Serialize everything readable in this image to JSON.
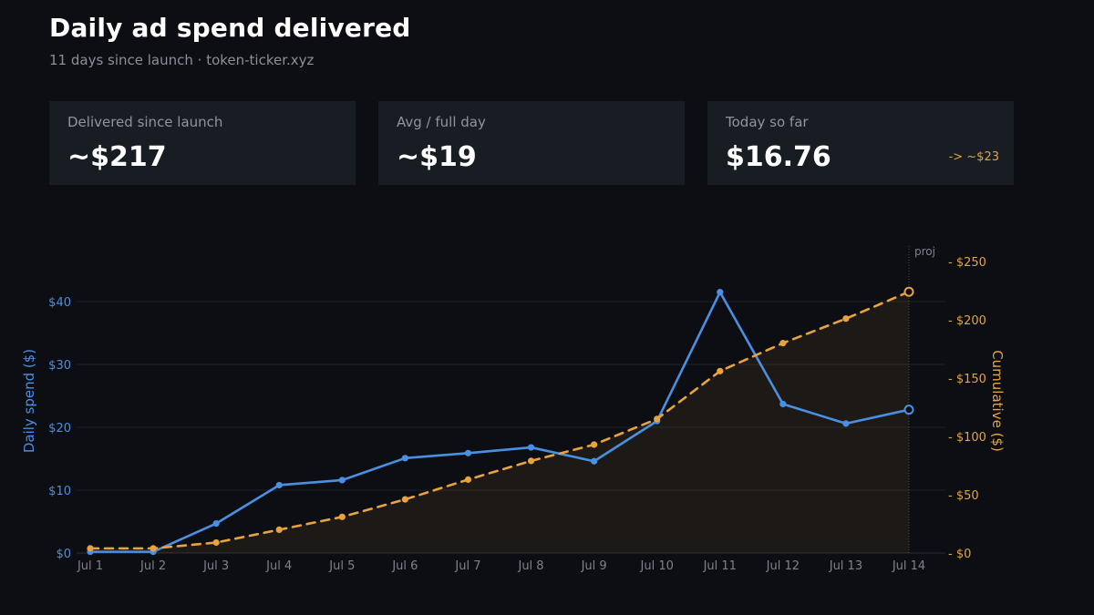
{
  "header": {
    "title": "Daily ad spend delivered",
    "subtitle": "11 days since launch · token-ticker.xyz"
  },
  "cards": [
    {
      "label": "Delivered since launch",
      "value": "~$217"
    },
    {
      "label": "Avg / full day",
      "value": "~$19"
    },
    {
      "label": "Today so far",
      "value": "$16.76",
      "note": "-> ~$23"
    }
  ],
  "colors": {
    "daily": "#4a90e2",
    "cumulative": "#e8a33d",
    "background": "#0c0e13",
    "card": "#181c23"
  },
  "chart_data": {
    "type": "line",
    "categories": [
      "Jul 1",
      "Jul 2",
      "Jul 3",
      "Jul 4",
      "Jul 5",
      "Jul 6",
      "Jul 7",
      "Jul 8",
      "Jul 9",
      "Jul 10",
      "Jul 11",
      "Jul 12",
      "Jul 13",
      "Jul 14"
    ],
    "series": [
      {
        "axis": "left",
        "style": "solid",
        "values": [
          0.2,
          0.2,
          4.7,
          10.8,
          11.6,
          15.1,
          15.9,
          16.8,
          14.6,
          21.0,
          41.5,
          23.7,
          20.6,
          22.8
        ],
        "projected_last": true
      },
      {
        "axis": "right",
        "style": "dashed",
        "area_fill": true,
        "values": [
          4.0,
          4.0,
          9.0,
          20.0,
          31.0,
          46.0,
          63.0,
          79.0,
          93.0,
          115.0,
          156.0,
          180.0,
          201.0,
          224.0
        ],
        "projected_last": true
      }
    ],
    "ylabel": "Daily spend ($)",
    "y2label": "Cumulative ($)",
    "ylim": [
      0,
      40
    ],
    "yticks": [
      "$0",
      "$10",
      "$20",
      "$30",
      "$40"
    ],
    "y2lim": [
      0,
      250
    ],
    "y2ticks": [
      "- $0",
      "- $50",
      "- $100",
      "- $150",
      "- $200",
      "- $250"
    ],
    "projection_label": "proj",
    "grid": true
  }
}
